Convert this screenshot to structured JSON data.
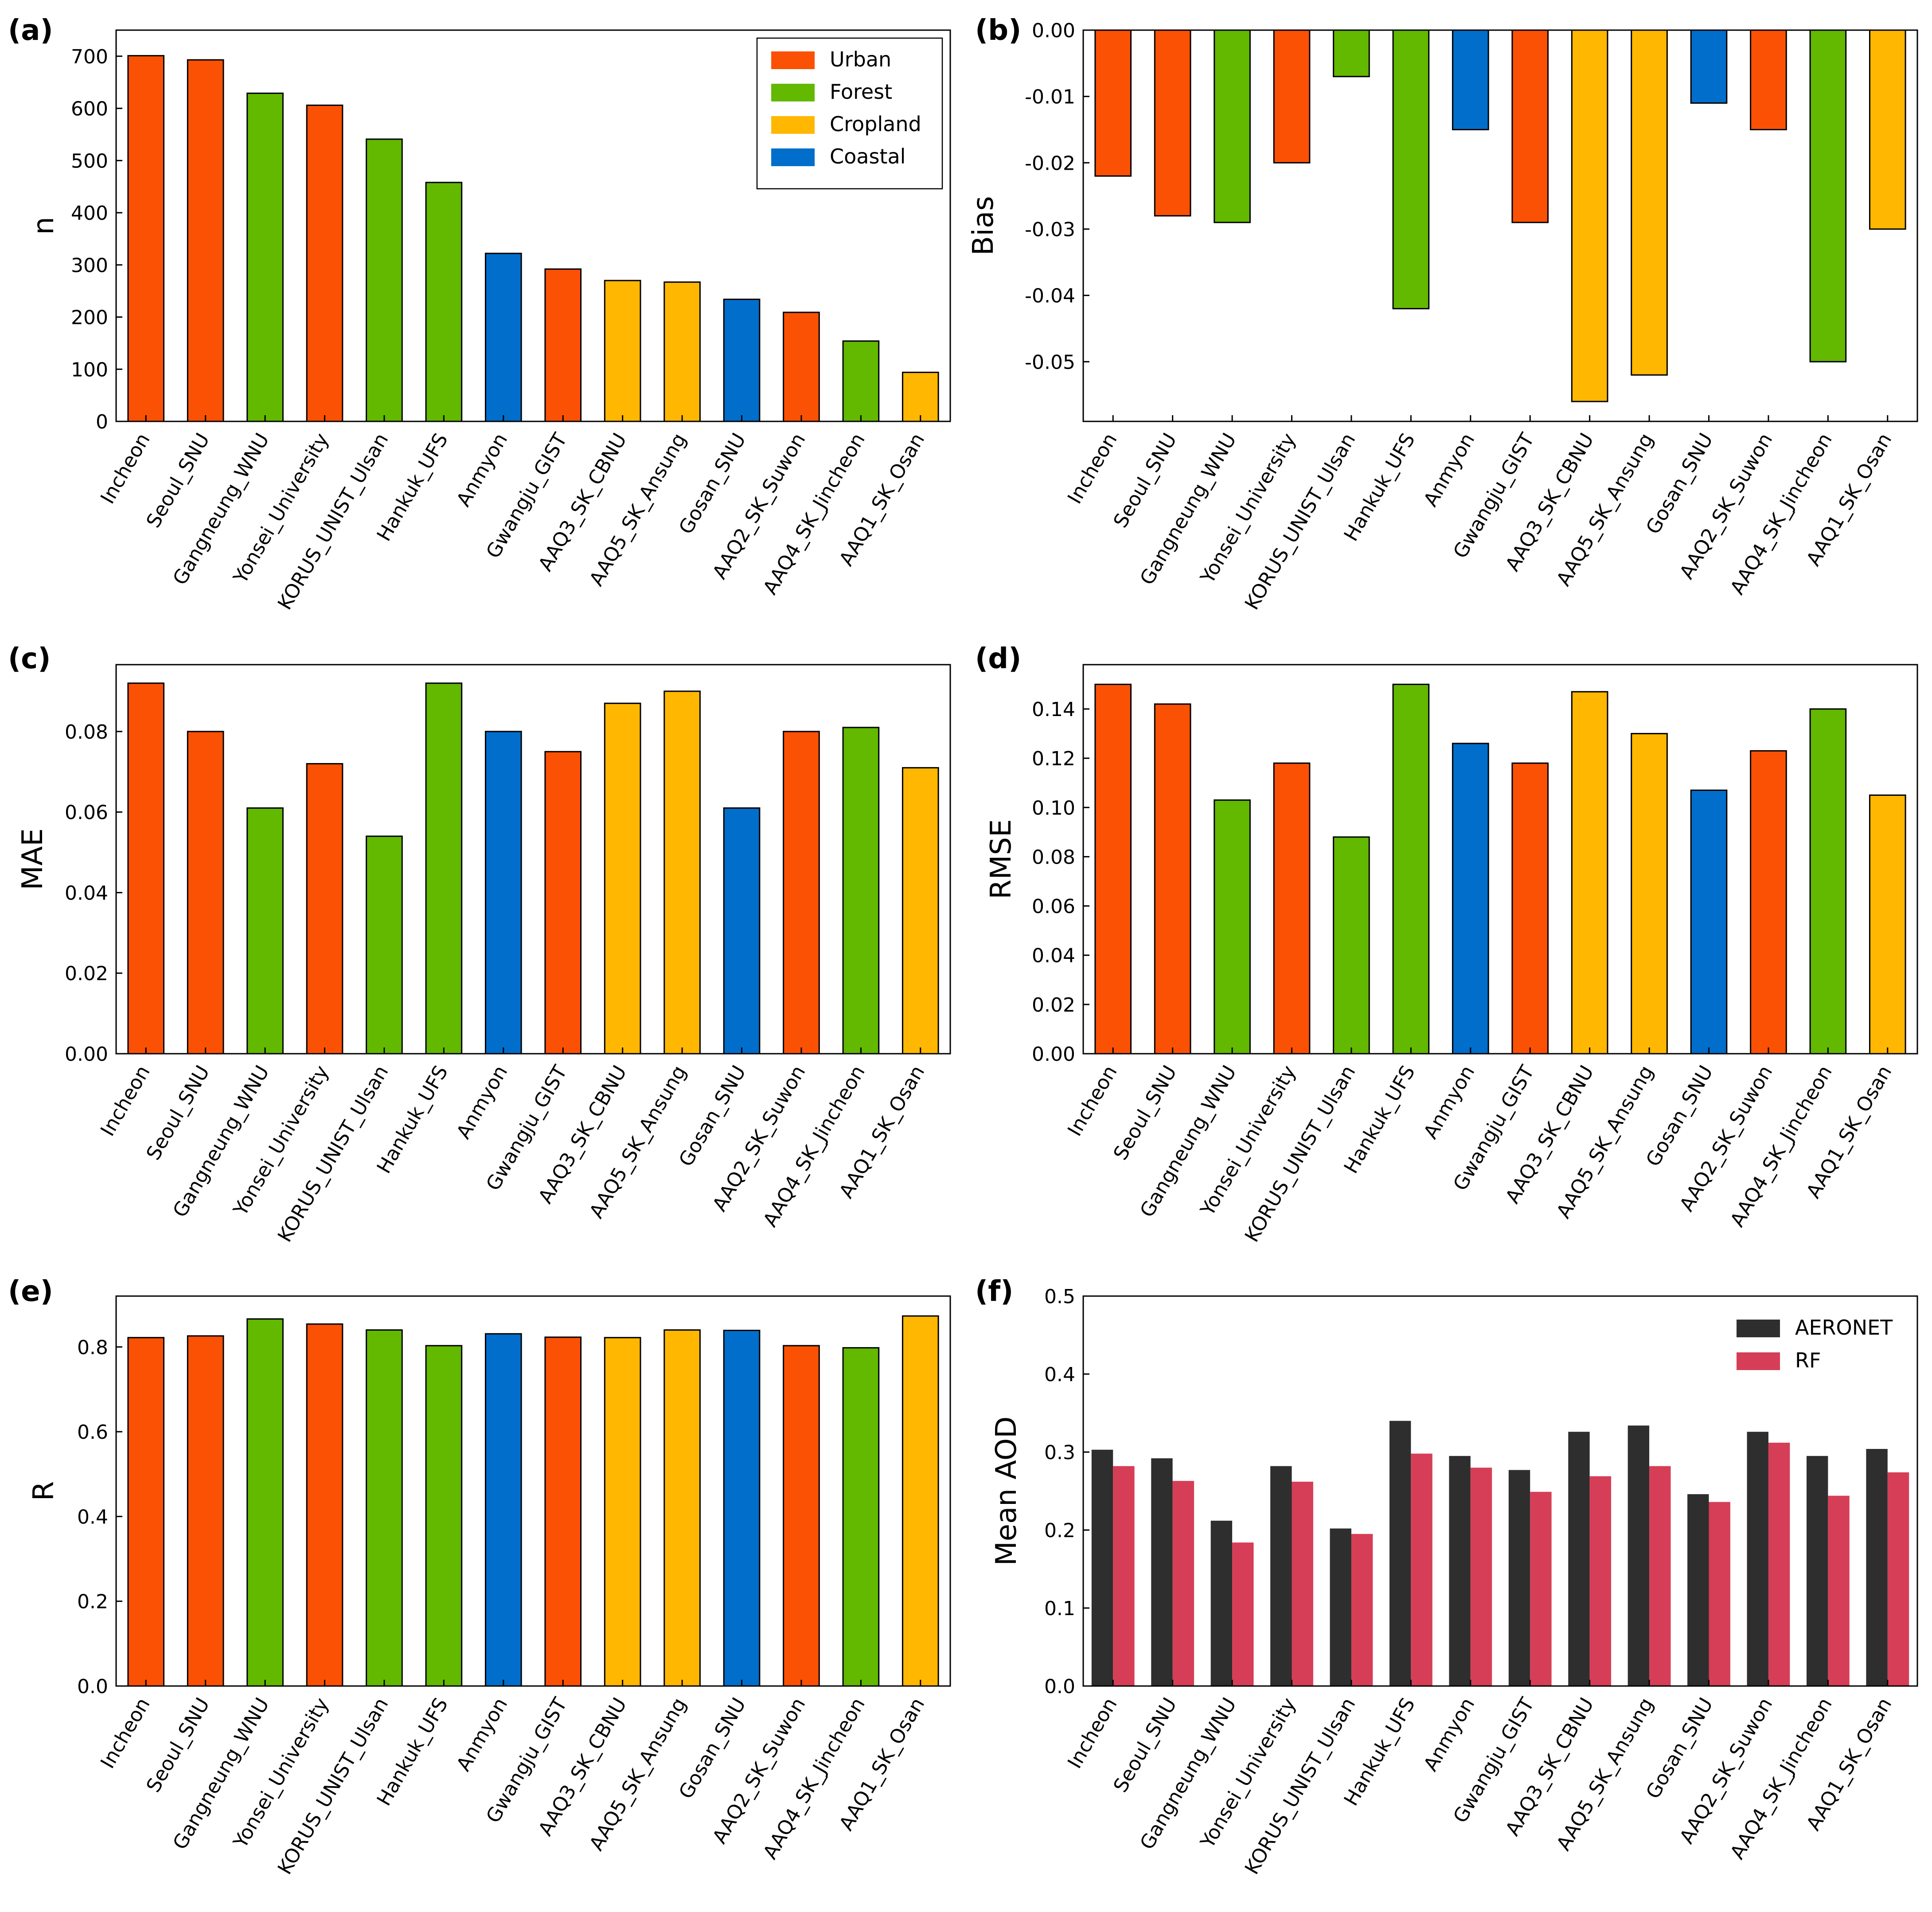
{
  "figure": {
    "stations": [
      "Incheon",
      "Seoul_SNU",
      "Gangneung_WNU",
      "Yonsei_University",
      "KORUS_UNIST_Ulsan",
      "Hankuk_UFS",
      "Anmyon",
      "Gwangju_GIST",
      "AAQ3_SK_CBNU",
      "AAQ5_SK_Ansung",
      "Gosan_SNU",
      "AAQ2_SK_Suwon",
      "AAQ4_SK_Jincheon",
      "AAQ1_SK_Osan"
    ],
    "station_types": [
      "Urban",
      "Urban",
      "Forest",
      "Urban",
      "Forest",
      "Forest",
      "Coastal",
      "Urban",
      "Cropland",
      "Cropland",
      "Coastal",
      "Urban",
      "Forest",
      "Cropland"
    ],
    "type_colors": {
      "Urban": "#fb5104",
      "Forest": "#63b800",
      "Cropland": "#ffb701",
      "Coastal": "#016ecb"
    },
    "type_legend": [
      "Urban",
      "Forest",
      "Cropland",
      "Coastal"
    ]
  },
  "chart_data": [
    {
      "panel": "(a)",
      "type": "bar",
      "ylabel": "n",
      "ylim": [
        0,
        750
      ],
      "yticks": [
        0,
        100,
        200,
        300,
        400,
        500,
        600,
        700
      ],
      "ytick_labels": [
        "0",
        "100",
        "200",
        "300",
        "400",
        "500",
        "600",
        "700"
      ],
      "values": [
        701,
        693,
        629,
        606,
        541,
        458,
        322,
        292,
        270,
        267,
        234,
        209,
        154,
        94
      ],
      "legend": "top-right"
    },
    {
      "panel": "(b)",
      "type": "bar",
      "ylabel": "Bias",
      "ylim": [
        -0.059,
        0.0
      ],
      "yticks": [
        0.0,
        -0.01,
        -0.02,
        -0.03,
        -0.04,
        -0.05
      ],
      "ytick_labels": [
        "0.00",
        "-0.01",
        "-0.02",
        "-0.03",
        "-0.04",
        "-0.05"
      ],
      "values": [
        -0.022,
        -0.028,
        -0.029,
        -0.02,
        -0.007,
        -0.042,
        -0.015,
        -0.029,
        -0.056,
        -0.052,
        -0.011,
        -0.015,
        -0.05,
        -0.03
      ]
    },
    {
      "panel": "(c)",
      "type": "bar",
      "ylabel": "MAE",
      "ylim": [
        0.0,
        0.0966
      ],
      "yticks": [
        0.0,
        0.02,
        0.04,
        0.06,
        0.08
      ],
      "ytick_labels": [
        "0.00",
        "0.02",
        "0.04",
        "0.06",
        "0.08"
      ],
      "values": [
        0.092,
        0.08,
        0.061,
        0.072,
        0.054,
        0.092,
        0.08,
        0.075,
        0.087,
        0.09,
        0.061,
        0.08,
        0.081,
        0.071
      ]
    },
    {
      "panel": "(d)",
      "type": "bar",
      "ylabel": "RMSE",
      "ylim": [
        0.0,
        0.158
      ],
      "yticks": [
        0.0,
        0.02,
        0.04,
        0.06,
        0.08,
        0.1,
        0.12,
        0.14
      ],
      "ytick_labels": [
        "0.00",
        "0.02",
        "0.04",
        "0.06",
        "0.08",
        "0.10",
        "0.12",
        "0.14"
      ],
      "values": [
        0.15,
        0.142,
        0.103,
        0.118,
        0.088,
        0.15,
        0.126,
        0.118,
        0.147,
        0.13,
        0.107,
        0.123,
        0.14,
        0.105
      ]
    },
    {
      "panel": "(e)",
      "type": "bar",
      "ylabel": "R",
      "ylim": [
        0.0,
        0.92
      ],
      "yticks": [
        0.0,
        0.2,
        0.4,
        0.6,
        0.8
      ],
      "ytick_labels": [
        "0.0",
        "0.2",
        "0.4",
        "0.6",
        "0.8"
      ],
      "values": [
        0.822,
        0.826,
        0.866,
        0.854,
        0.84,
        0.803,
        0.831,
        0.823,
        0.822,
        0.84,
        0.839,
        0.803,
        0.798,
        0.873
      ]
    },
    {
      "panel": "(f)",
      "type": "bar",
      "ylabel": "Mean AOD",
      "ylim": [
        0.0,
        0.5
      ],
      "yticks": [
        0.0,
        0.1,
        0.2,
        0.3,
        0.4,
        0.5
      ],
      "ytick_labels": [
        "0.0",
        "0.1",
        "0.2",
        "0.3",
        "0.4",
        "0.5"
      ],
      "legend": "top-right",
      "series": [
        {
          "name": "AERONET",
          "color": "#2e2e2e",
          "values": [
            0.303,
            0.292,
            0.212,
            0.282,
            0.202,
            0.34,
            0.295,
            0.277,
            0.326,
            0.334,
            0.246,
            0.326,
            0.295,
            0.304
          ]
        },
        {
          "name": "RF",
          "color": "#d63e57",
          "values": [
            0.282,
            0.263,
            0.184,
            0.262,
            0.195,
            0.298,
            0.28,
            0.249,
            0.269,
            0.282,
            0.236,
            0.312,
            0.244,
            0.274
          ]
        }
      ]
    }
  ]
}
